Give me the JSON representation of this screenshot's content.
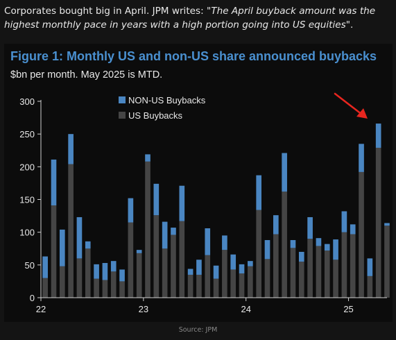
{
  "post": {
    "text_intro": "Corporates bought big in April. JPM writes: \"",
    "quote": "The April buyback amount was the highest monthly pace in years with a high portion going into US equities",
    "text_outro": "\"."
  },
  "source": "Source: JPM",
  "colors": {
    "nonus": "#4a86c2",
    "us": "#454545",
    "axis": "#d0d0d0",
    "arrow": "#e8261f",
    "title": "#4a90d0"
  },
  "chart_data": {
    "type": "bar",
    "stacked": true,
    "title": "Figure 1: Monthly US and non-US share announced buybacks",
    "subtitle": "$bn per month. May 2025 is MTD.",
    "xlabel": "",
    "ylabel": "",
    "ylim": [
      0,
      300
    ],
    "yticks": [
      "0",
      "50",
      "100",
      "150",
      "200",
      "250",
      "300"
    ],
    "xticks": [
      {
        "label": "22",
        "index": 0
      },
      {
        "label": "23",
        "index": 12
      },
      {
        "label": "24",
        "index": 24
      },
      {
        "label": "25",
        "index": 36
      }
    ],
    "legend_position": "top-center",
    "annotation": "red arrow pointing at April 2025 bar",
    "categories": [
      "Jan 22",
      "Feb 22",
      "Mar 22",
      "Apr 22",
      "May 22",
      "Jun 22",
      "Jul 22",
      "Aug 22",
      "Sep 22",
      "Oct 22",
      "Nov 22",
      "Dec 22",
      "Jan 23",
      "Feb 23",
      "Mar 23",
      "Apr 23",
      "May 23",
      "Jun 23",
      "Jul 23",
      "Aug 23",
      "Sep 23",
      "Oct 23",
      "Nov 23",
      "Dec 23",
      "Jan 24",
      "Feb 24",
      "Mar 24",
      "Apr 24",
      "May 24",
      "Jun 24",
      "Jul 24",
      "Aug 24",
      "Sep 24",
      "Oct 24",
      "Nov 24",
      "Dec 24",
      "Jan 25",
      "Feb 25",
      "Mar 25",
      "Apr 25",
      "May 25"
    ],
    "series": [
      {
        "name": "US Buybacks",
        "values": [
          30,
          141,
          48,
          204,
          60,
          75,
          29,
          27,
          40,
          25,
          115,
          68,
          208,
          126,
          75,
          96,
          117,
          35,
          35,
          65,
          29,
          73,
          43,
          37,
          48,
          134,
          59,
          97,
          162,
          76,
          55,
          90,
          79,
          72,
          58,
          100,
          97,
          192,
          33,
          229,
          110
        ]
      },
      {
        "name": "NON-US Buybacks",
        "values": [
          33,
          70,
          56,
          46,
          63,
          11,
          22,
          26,
          16,
          18,
          37,
          5,
          11,
          48,
          41,
          11,
          54,
          9,
          23,
          41,
          20,
          22,
          23,
          14,
          8,
          53,
          29,
          29,
          59,
          12,
          15,
          33,
          12,
          10,
          31,
          32,
          15,
          43,
          27,
          37,
          4
        ]
      }
    ]
  }
}
